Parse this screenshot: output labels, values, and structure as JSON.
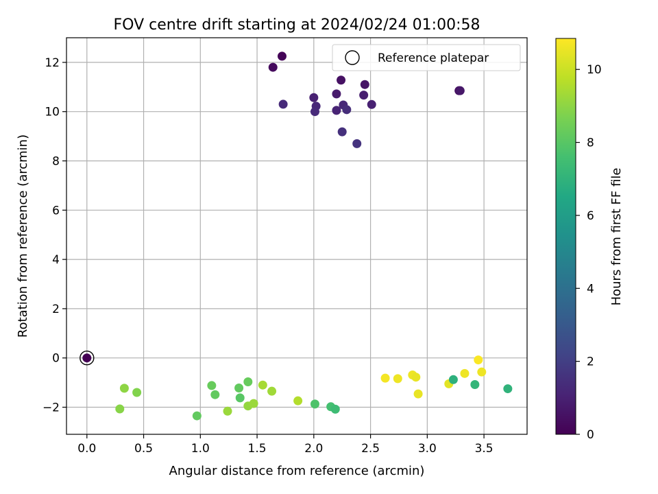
{
  "chart_data": {
    "type": "scatter",
    "title": "FOV centre drift starting at 2024/02/24 01:00:58",
    "xlabel": "Angular distance from reference (arcmin)",
    "ylabel": "Rotation from reference (arcmin)",
    "xlim": [
      -0.18,
      3.88
    ],
    "ylim": [
      -3.1,
      13.0
    ],
    "xticks": [
      0.0,
      0.5,
      1.0,
      1.5,
      2.0,
      2.5,
      3.0,
      3.5
    ],
    "xtick_labels": [
      "0.0",
      "0.5",
      "1.0",
      "1.5",
      "2.0",
      "2.5",
      "3.0",
      "3.5"
    ],
    "yticks": [
      -2,
      0,
      2,
      4,
      6,
      8,
      10,
      12
    ],
    "ytick_labels": [
      "−2",
      "0",
      "2",
      "4",
      "6",
      "8",
      "10",
      "12"
    ],
    "grid": true,
    "legend": {
      "placement": "top-right",
      "entries": [
        "Reference platepar"
      ]
    },
    "reference_marker": {
      "x": 0.0,
      "y": 0.0,
      "label": "Reference platepar"
    },
    "colorbar": {
      "label": "Hours from first FF file",
      "range": [
        0,
        10.85
      ],
      "ticks": [
        0,
        2,
        4,
        6,
        8,
        10
      ],
      "tick_labels": [
        "0",
        "2",
        "4",
        "6",
        "8",
        "10"
      ],
      "colormap": "viridis"
    },
    "points": [
      {
        "x": 0.0,
        "y": 0.0,
        "c": 0.0
      },
      {
        "x": 1.72,
        "y": 12.25,
        "c": 0.1
      },
      {
        "x": 1.64,
        "y": 11.8,
        "c": 0.3
      },
      {
        "x": 1.73,
        "y": 10.3,
        "c": 1.3
      },
      {
        "x": 2.24,
        "y": 11.28,
        "c": 0.5
      },
      {
        "x": 2.45,
        "y": 11.1,
        "c": 0.6
      },
      {
        "x": 2.2,
        "y": 10.72,
        "c": 0.8
      },
      {
        "x": 2.44,
        "y": 10.67,
        "c": 0.9
      },
      {
        "x": 2.0,
        "y": 10.57,
        "c": 1.0
      },
      {
        "x": 2.02,
        "y": 10.22,
        "c": 1.2
      },
      {
        "x": 2.26,
        "y": 10.27,
        "c": 1.2
      },
      {
        "x": 2.51,
        "y": 10.29,
        "c": 1.0
      },
      {
        "x": 2.01,
        "y": 10.0,
        "c": 1.3
      },
      {
        "x": 2.2,
        "y": 10.05,
        "c": 1.1
      },
      {
        "x": 2.29,
        "y": 10.08,
        "c": 1.4
      },
      {
        "x": 2.25,
        "y": 9.18,
        "c": 1.5
      },
      {
        "x": 2.38,
        "y": 8.7,
        "c": 1.6
      },
      {
        "x": 3.28,
        "y": 10.85,
        "c": 0.4
      },
      {
        "x": 3.29,
        "y": 10.85,
        "c": 0.7
      },
      {
        "x": 0.33,
        "y": -1.23,
        "c": 9.0
      },
      {
        "x": 0.44,
        "y": -1.4,
        "c": 8.8
      },
      {
        "x": 0.29,
        "y": -2.07,
        "c": 8.9
      },
      {
        "x": 0.97,
        "y": -2.35,
        "c": 8.2
      },
      {
        "x": 1.1,
        "y": -1.12,
        "c": 8.3
      },
      {
        "x": 1.13,
        "y": -1.49,
        "c": 8.2
      },
      {
        "x": 1.24,
        "y": -2.16,
        "c": 9.2
      },
      {
        "x": 1.34,
        "y": -1.22,
        "c": 8.2
      },
      {
        "x": 1.35,
        "y": -1.62,
        "c": 8.0
      },
      {
        "x": 1.42,
        "y": -0.97,
        "c": 8.3
      },
      {
        "x": 1.42,
        "y": -1.95,
        "c": 9.1
      },
      {
        "x": 1.47,
        "y": -1.85,
        "c": 9.2
      },
      {
        "x": 1.55,
        "y": -1.1,
        "c": 9.4
      },
      {
        "x": 1.63,
        "y": -1.35,
        "c": 9.3
      },
      {
        "x": 1.86,
        "y": -1.74,
        "c": 9.6
      },
      {
        "x": 2.01,
        "y": -1.87,
        "c": 7.8
      },
      {
        "x": 2.15,
        "y": -1.98,
        "c": 7.6
      },
      {
        "x": 2.19,
        "y": -2.08,
        "c": 7.4
      },
      {
        "x": 2.63,
        "y": -0.82,
        "c": 10.7
      },
      {
        "x": 2.74,
        "y": -0.84,
        "c": 10.6
      },
      {
        "x": 2.87,
        "y": -0.69,
        "c": 10.6
      },
      {
        "x": 2.9,
        "y": -0.78,
        "c": 10.5
      },
      {
        "x": 2.92,
        "y": -1.46,
        "c": 10.5
      },
      {
        "x": 3.19,
        "y": -1.05,
        "c": 10.4
      },
      {
        "x": 3.23,
        "y": -0.88,
        "c": 6.9
      },
      {
        "x": 3.33,
        "y": -0.63,
        "c": 10.6
      },
      {
        "x": 3.42,
        "y": -1.08,
        "c": 7.1
      },
      {
        "x": 3.45,
        "y": -0.08,
        "c": 10.8
      },
      {
        "x": 3.48,
        "y": -0.57,
        "c": 10.6
      },
      {
        "x": 3.71,
        "y": -1.25,
        "c": 7.0
      }
    ]
  }
}
